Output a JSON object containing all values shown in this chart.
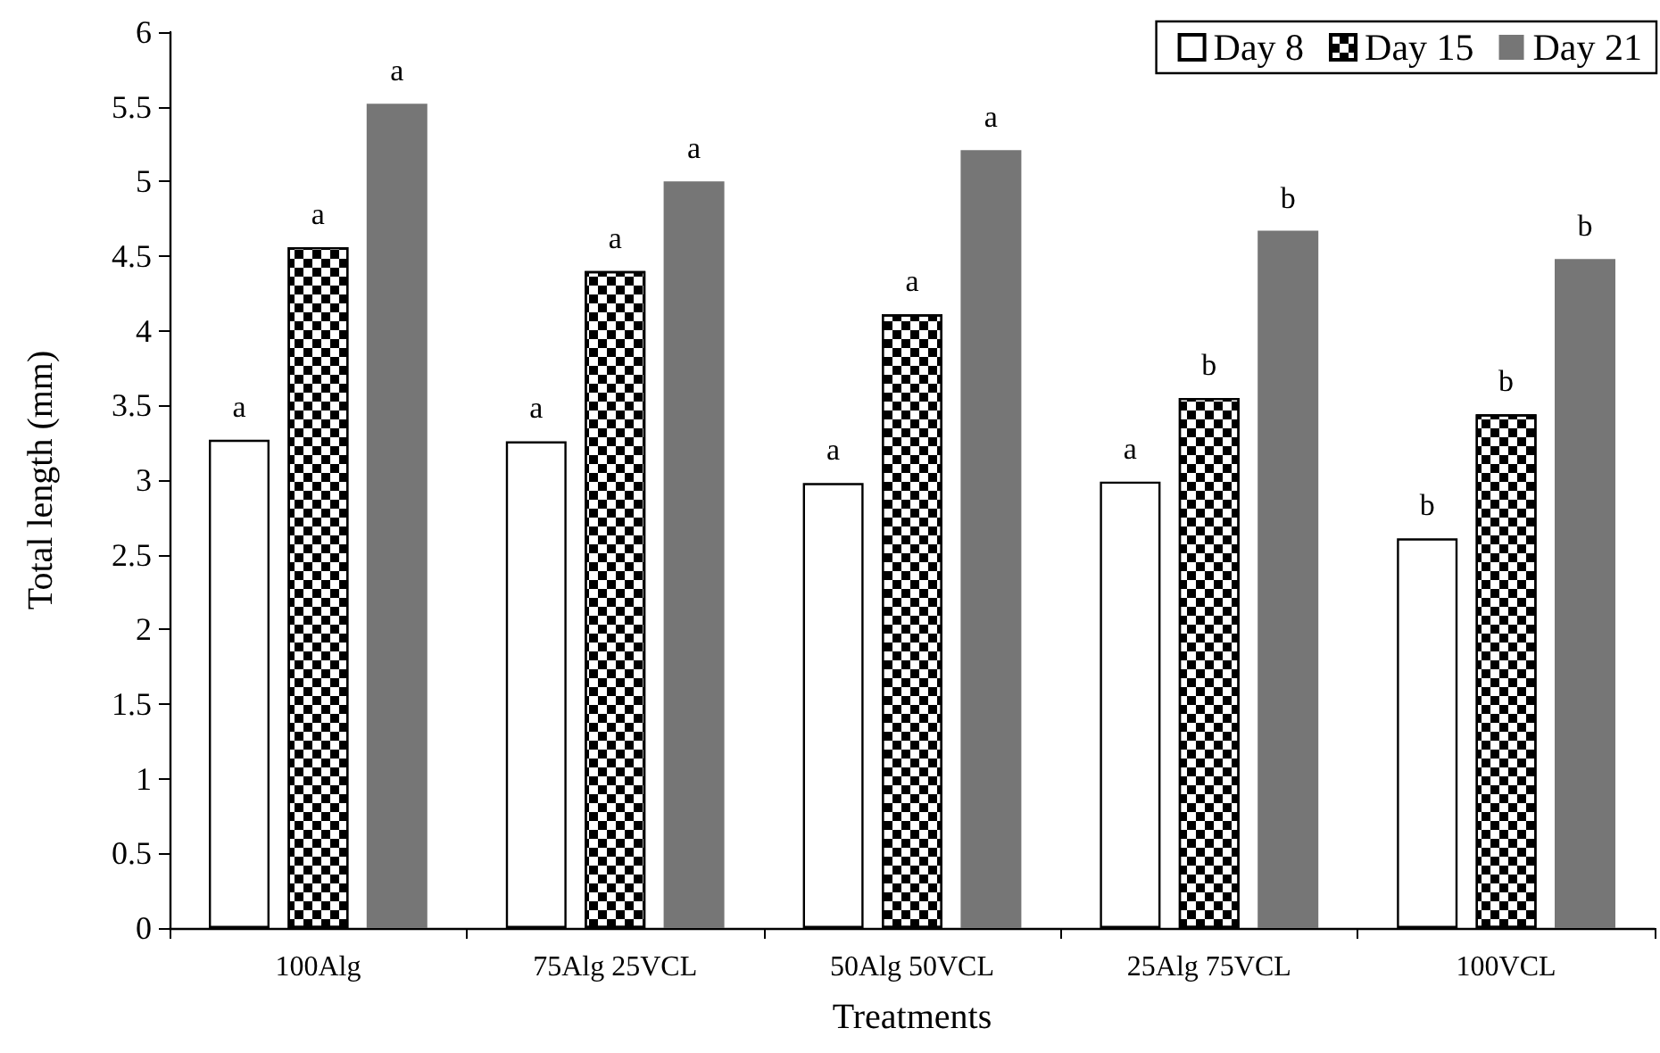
{
  "chart_data": {
    "type": "bar",
    "xlabel": "Treatments",
    "ylabel": "Total length (mm)",
    "categories": [
      "100Alg",
      "75Alg 25VCL",
      "50Alg 50VCL",
      "25Alg 75VCL",
      "100VCL"
    ],
    "series": [
      {
        "name": "Day 8",
        "color": "#ffffff",
        "values": [
          3.27,
          3.26,
          2.98,
          2.99,
          2.61
        ],
        "value_labels": [
          "a",
          "a",
          "a",
          "a",
          "b"
        ]
      },
      {
        "name": "Day 15",
        "color": "#000000",
        "values": [
          4.56,
          4.4,
          4.11,
          3.55,
          3.44
        ],
        "value_labels": [
          "a",
          "a",
          "a",
          "b",
          "b"
        ]
      },
      {
        "name": "Day 21",
        "color": "#767676",
        "values": [
          5.52,
          5.0,
          5.21,
          4.67,
          4.48
        ],
        "value_labels": [
          "a",
          "a",
          "a",
          "b",
          "b"
        ]
      }
    ],
    "ylim": [
      0,
      6
    ],
    "yticks": [
      0,
      0.5,
      1,
      1.5,
      2,
      2.5,
      3,
      3.5,
      4,
      4.5,
      5,
      5.5,
      6
    ],
    "grid": false,
    "legend": "top right"
  }
}
